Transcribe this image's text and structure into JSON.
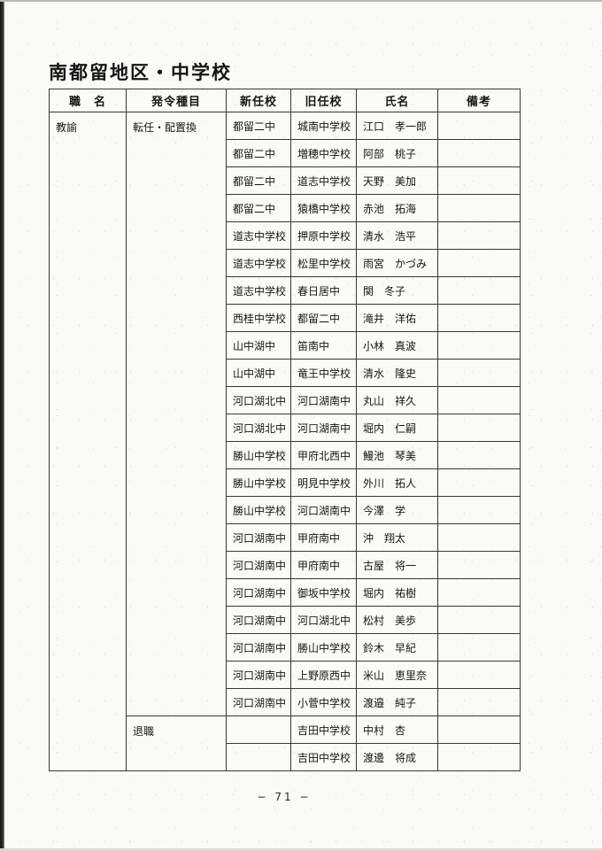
{
  "page": {
    "title": "南都留地区・中学校",
    "page_number": "− 71 −"
  },
  "table": {
    "headers": [
      "職　名",
      "発令種目",
      "新任校",
      "旧任校",
      "氏名",
      "備考"
    ],
    "position_label": "教諭",
    "sections": [
      {
        "order_type": "転任・配置換",
        "rows": [
          {
            "new_school": "都留二中",
            "old_school": "城南中学校",
            "name": "江口　孝一郎",
            "remarks": ""
          },
          {
            "new_school": "都留二中",
            "old_school": "増穂中学校",
            "name": "阿部　桃子",
            "remarks": ""
          },
          {
            "new_school": "都留二中",
            "old_school": "道志中学校",
            "name": "天野　美加",
            "remarks": ""
          },
          {
            "new_school": "都留二中",
            "old_school": "猿橋中学校",
            "name": "赤池　拓海",
            "remarks": ""
          },
          {
            "new_school": "道志中学校",
            "old_school": "押原中学校",
            "name": "清水　浩平",
            "remarks": ""
          },
          {
            "new_school": "道志中学校",
            "old_school": "松里中学校",
            "name": "雨宮　かづみ",
            "remarks": ""
          },
          {
            "new_school": "道志中学校",
            "old_school": "春日居中",
            "name": "関　冬子",
            "remarks": ""
          },
          {
            "new_school": "西桂中学校",
            "old_school": "都留二中",
            "name": "滝井　洋佑",
            "remarks": ""
          },
          {
            "new_school": "山中湖中",
            "old_school": "笛南中",
            "name": "小林　真波",
            "remarks": ""
          },
          {
            "new_school": "山中湖中",
            "old_school": "竜王中学校",
            "name": "清水　隆史",
            "remarks": ""
          },
          {
            "new_school": "河口湖北中",
            "old_school": "河口湖南中",
            "name": "丸山　祥久",
            "remarks": ""
          },
          {
            "new_school": "河口湖北中",
            "old_school": "河口湖南中",
            "name": "堀内　仁嗣",
            "remarks": ""
          },
          {
            "new_school": "勝山中学校",
            "old_school": "甲府北西中",
            "name": "鰻池　琴美",
            "remarks": ""
          },
          {
            "new_school": "勝山中学校",
            "old_school": "明見中学校",
            "name": "外川　拓人",
            "remarks": ""
          },
          {
            "new_school": "勝山中学校",
            "old_school": "河口湖南中",
            "name": "今澤　学",
            "remarks": ""
          },
          {
            "new_school": "河口湖南中",
            "old_school": "甲府南中",
            "name": "沖　翔太",
            "remarks": ""
          },
          {
            "new_school": "河口湖南中",
            "old_school": "甲府南中",
            "name": "古屋　将一",
            "remarks": ""
          },
          {
            "new_school": "河口湖南中",
            "old_school": "御坂中学校",
            "name": "堀内　祐樹",
            "remarks": ""
          },
          {
            "new_school": "河口湖南中",
            "old_school": "河口湖北中",
            "name": "松村　美歩",
            "remarks": ""
          },
          {
            "new_school": "河口湖南中",
            "old_school": "勝山中学校",
            "name": "鈴木　早紀",
            "remarks": ""
          },
          {
            "new_school": "河口湖南中",
            "old_school": "上野原西中",
            "name": "米山　恵里奈",
            "remarks": ""
          },
          {
            "new_school": "河口湖南中",
            "old_school": "小菅中学校",
            "name": "渡邉　純子",
            "remarks": ""
          }
        ]
      },
      {
        "order_type": "退職",
        "rows": [
          {
            "new_school": "",
            "old_school": "吉田中学校",
            "name": "中村　杏",
            "remarks": ""
          },
          {
            "new_school": "",
            "old_school": "吉田中学校",
            "name": "渡邊　将成",
            "remarks": ""
          }
        ]
      }
    ]
  }
}
